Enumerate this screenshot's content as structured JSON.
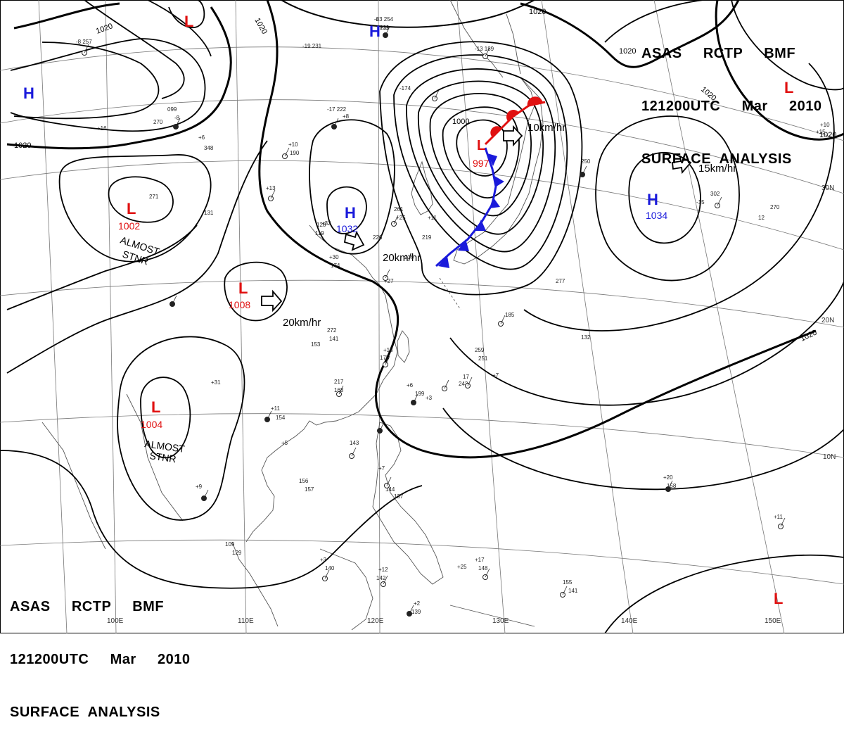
{
  "title": {
    "line1": "ASAS     RCTP     BMF",
    "line2": "121200UTC     Mar     2010",
    "line3": "SURFACE  ANALYSIS"
  },
  "colors": {
    "high": "#1a1adb",
    "low": "#e01010",
    "pressure_value_high": "#1a1adb",
    "pressure_value_low": "#e01010",
    "cold_front": "#1a1adb",
    "warm_front": "#e01010",
    "isobar": "#000000",
    "grid": "#777777",
    "coast": "#555555"
  },
  "grid_labels": {
    "lon": [
      "100E",
      "110E",
      "120E",
      "130E",
      "140E",
      "150E"
    ],
    "lat": [
      "30N",
      "20N",
      "10N"
    ]
  },
  "systems": [
    {
      "type": "H",
      "value": ""
    },
    {
      "type": "H",
      "value": ""
    },
    {
      "type": "H",
      "value": "1032"
    },
    {
      "type": "H",
      "value": "1034"
    },
    {
      "type": "L",
      "value": ""
    },
    {
      "type": "L",
      "value": "1002"
    },
    {
      "type": "L",
      "value": "1008"
    },
    {
      "type": "L",
      "value": "1004"
    },
    {
      "type": "L",
      "value": "997"
    },
    {
      "type": "L",
      "value": ""
    },
    {
      "type": "L",
      "value": ""
    }
  ],
  "motions": [
    {
      "text": "20km/hr"
    },
    {
      "text": "20km/hr"
    },
    {
      "text": "10km/hr"
    },
    {
      "text": "15km/hr"
    }
  ],
  "annotations": [
    {
      "line1": "ALMOST",
      "line2": "STNR"
    },
    {
      "line1": "ALMOST",
      "line2": "STNR"
    }
  ],
  "isobar_labels": [
    "1020",
    "1020",
    "1020",
    "1020",
    "1020",
    "1020",
    "1000"
  ],
  "stations": [
    "-23 254",
    "+11",
    "-13 189",
    "-19 231",
    "-174",
    "-17 222",
    "+8",
    "-8 257",
    "261",
    "+25",
    "226",
    "+27",
    "250",
    "302",
    "270",
    "-15",
    "12",
    "17",
    "243",
    "+7",
    "259",
    "251",
    "+6",
    "199",
    "+3",
    "217",
    "168",
    "+18",
    "175",
    "+11",
    "154",
    "+5",
    "143",
    "156",
    "157",
    "+7",
    "144",
    "137",
    "+9",
    "109",
    "129",
    "+3",
    "140",
    "+12",
    "142",
    "+2",
    "139",
    "+17",
    "148",
    "+25",
    "155",
    "141",
    "+20",
    "158",
    "+11",
    "132",
    "277",
    "272",
    "141",
    "+10",
    "190",
    "+13",
    "131",
    "128",
    "119",
    "+30",
    "174",
    "+32",
    "219",
    "+11",
    "236",
    "153",
    "+31",
    "+10",
    "+15",
    "185",
    "+16",
    "+6",
    "348",
    "099",
    "-8",
    "270",
    "271",
    "-6",
    "239"
  ]
}
